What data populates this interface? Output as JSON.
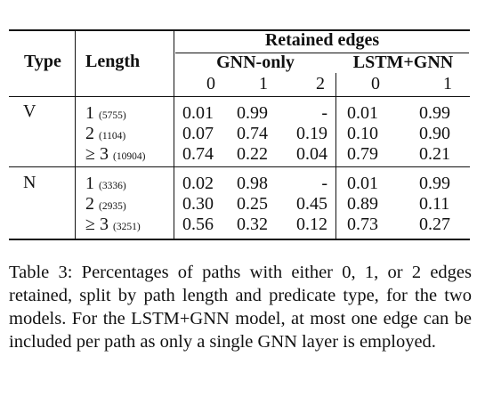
{
  "table": {
    "headers": {
      "type": "Type",
      "length": "Length",
      "group": "Retained edges",
      "gnn_only": "GNN-only",
      "lstm_gnn": "LSTM+GNN",
      "gnn_cols": [
        "0",
        "1",
        "2"
      ],
      "lstm_cols": [
        "0",
        "1"
      ]
    },
    "groups": [
      {
        "type": "V",
        "rows": [
          {
            "length": "1",
            "count": "(5755)",
            "gnn": [
              "0.01",
              "0.99",
              "-"
            ],
            "lstm": [
              "0.01",
              "0.99"
            ]
          },
          {
            "length": "2",
            "count": "(1104)",
            "gnn": [
              "0.07",
              "0.74",
              "0.19"
            ],
            "lstm": [
              "0.10",
              "0.90"
            ]
          },
          {
            "length": "≥ 3",
            "count": "(10904)",
            "gnn": [
              "0.74",
              "0.22",
              "0.04"
            ],
            "lstm": [
              "0.79",
              "0.21"
            ]
          }
        ]
      },
      {
        "type": "N",
        "rows": [
          {
            "length": "1",
            "count": "(3336)",
            "gnn": [
              "0.02",
              "0.98",
              "-"
            ],
            "lstm": [
              "0.01",
              "0.99"
            ]
          },
          {
            "length": "2",
            "count": "(2935)",
            "gnn": [
              "0.30",
              "0.25",
              "0.45"
            ],
            "lstm": [
              "0.89",
              "0.11"
            ]
          },
          {
            "length": "≥ 3",
            "count": "(3251)",
            "gnn": [
              "0.56",
              "0.32",
              "0.12"
            ],
            "lstm": [
              "0.73",
              "0.27"
            ]
          }
        ]
      }
    ]
  },
  "caption": "Table 3: Percentages of paths with either 0, 1, or 2 edges retained, split by path length and predicate type, for the two models. For the LSTM+GNN model, at most one edge can be included per path as only a single GNN layer is employed."
}
